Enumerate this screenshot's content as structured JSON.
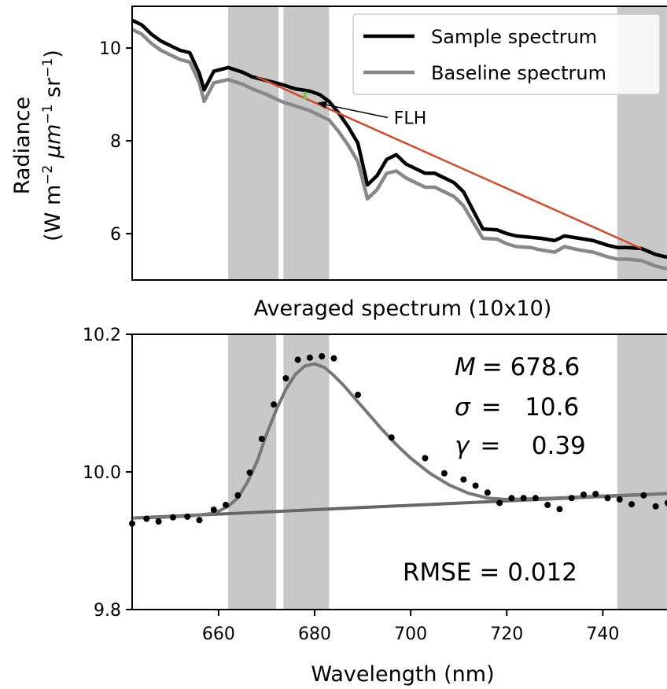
{
  "chart_data": [
    {
      "type": "line",
      "title": "",
      "xlabel": "",
      "ylabel": "Radiance",
      "ylabel_units": "(W m",
      "ylabel_units_parts": [
        "(W m",
        "−2",
        " μm",
        "−1",
        " sr",
        "−1",
        ")"
      ],
      "xlim": [
        642,
        755
      ],
      "ylim": [
        5.0,
        10.9
      ],
      "yticks": [
        6,
        8,
        10
      ],
      "ytick_labels": [
        "6",
        "8",
        "10"
      ],
      "grid": false,
      "legend": "top-right",
      "shaded_bands": [
        [
          662,
          672.5
        ],
        [
          673.5,
          683
        ],
        [
          743,
          755
        ]
      ],
      "series": [
        {
          "name": "Sample spectrum",
          "color": "#000000",
          "x": [
            642,
            644,
            646,
            648,
            650,
            652,
            654,
            656,
            657,
            659,
            662,
            665,
            667,
            670,
            673,
            676,
            679,
            681,
            683,
            685,
            687,
            689,
            691,
            693,
            695,
            697,
            699,
            701,
            703,
            705,
            707,
            709,
            711,
            713,
            715,
            718,
            720,
            722,
            725,
            727,
            730,
            732,
            735,
            738,
            741,
            743,
            745,
            748,
            751,
            753,
            755
          ],
          "values": [
            10.6,
            10.5,
            10.3,
            10.15,
            10.05,
            9.95,
            9.9,
            9.45,
            9.1,
            9.5,
            9.58,
            9.48,
            9.38,
            9.3,
            9.22,
            9.12,
            9.07,
            9.0,
            8.85,
            8.6,
            8.3,
            7.95,
            7.05,
            7.25,
            7.6,
            7.7,
            7.5,
            7.4,
            7.3,
            7.3,
            7.2,
            7.1,
            6.9,
            6.5,
            6.1,
            6.08,
            6.0,
            5.95,
            5.92,
            5.9,
            5.85,
            5.95,
            5.9,
            5.85,
            5.75,
            5.7,
            5.7,
            5.68,
            5.55,
            5.5,
            5.5
          ]
        },
        {
          "name": "Baseline spectrum",
          "color": "#888888",
          "x": [
            642,
            644,
            646,
            648,
            650,
            652,
            654,
            656,
            657,
            659,
            662,
            665,
            667,
            670,
            673,
            676,
            679,
            681,
            683,
            685,
            687,
            689,
            691,
            693,
            695,
            697,
            699,
            701,
            703,
            705,
            707,
            709,
            711,
            713,
            715,
            718,
            720,
            722,
            725,
            727,
            730,
            732,
            735,
            738,
            741,
            743,
            745,
            748,
            751,
            753,
            755
          ],
          "values": [
            10.4,
            10.3,
            10.1,
            9.95,
            9.85,
            9.75,
            9.7,
            9.25,
            8.85,
            9.25,
            9.32,
            9.22,
            9.12,
            9.0,
            8.85,
            8.75,
            8.65,
            8.55,
            8.45,
            8.2,
            7.9,
            7.55,
            6.75,
            6.95,
            7.3,
            7.35,
            7.2,
            7.1,
            7.0,
            7.0,
            6.9,
            6.8,
            6.6,
            6.25,
            5.9,
            5.88,
            5.78,
            5.72,
            5.7,
            5.65,
            5.6,
            5.72,
            5.65,
            5.6,
            5.5,
            5.45,
            5.45,
            5.42,
            5.3,
            5.25,
            5.25
          ]
        }
      ],
      "flh_line": {
        "color": "#d24a2a",
        "x": [
          668,
          748
        ],
        "y": [
          9.38,
          5.68
        ]
      },
      "flh_marker": {
        "color": "#7fc04a",
        "x": 678,
        "y": [
          9.06,
          8.9
        ]
      },
      "annotation": {
        "text": "FLH",
        "point_x": 680.2,
        "point_y": 8.82,
        "text_x": 696.5,
        "text_y": 8.4
      }
    },
    {
      "type": "scatter",
      "title": "Averaged spectrum (10x10)",
      "xlabel": "Wavelength (nm)",
      "ylabel": "",
      "xlim": [
        642,
        755
      ],
      "ylim": [
        9.8,
        10.2
      ],
      "xticks": [
        660,
        680,
        700,
        720,
        740
      ],
      "xtick_labels": [
        "660",
        "680",
        "700",
        "720",
        "740"
      ],
      "yticks": [
        9.8,
        10.0,
        10.2
      ],
      "ytick_labels": [
        "9.8",
        "10.0",
        "10.2"
      ],
      "grid": false,
      "shaded_bands": [
        [
          662,
          672
        ],
        [
          673.5,
          683
        ],
        [
          743,
          755
        ]
      ],
      "points": {
        "color": "#000000",
        "x": [
          642,
          645,
          647.5,
          650.5,
          653.5,
          656,
          659,
          661.5,
          664,
          666.5,
          669,
          671.5,
          674,
          676.5,
          679,
          681.5,
          684,
          689,
          696,
          703,
          707,
          711,
          713.5,
          716,
          718.5,
          721,
          723.5,
          726,
          728.5,
          731,
          733.5,
          736,
          738.5,
          741,
          743.5,
          746,
          748.5,
          751,
          753.5
        ],
        "values": [
          9.925,
          9.932,
          9.928,
          9.934,
          9.935,
          9.93,
          9.945,
          9.952,
          9.966,
          9.999,
          10.048,
          10.098,
          10.136,
          10.163,
          10.166,
          10.168,
          10.165,
          10.112,
          10.05,
          10.02,
          9.998,
          9.989,
          9.98,
          9.97,
          9.955,
          9.962,
          9.962,
          9.962,
          9.952,
          9.946,
          9.962,
          9.967,
          9.968,
          9.962,
          9.96,
          9.953,
          9.966,
          9.95,
          9.955
        ]
      },
      "fit_curve": {
        "color": "#777777",
        "x": [
          642,
          648,
          654,
          658,
          660,
          662,
          664,
          666,
          668,
          670,
          672,
          674,
          676,
          678,
          680,
          682,
          684,
          686,
          688,
          690,
          692,
          694,
          696,
          698,
          700,
          704,
          708,
          712,
          716,
          720,
          730,
          740,
          755
        ],
        "values": [
          9.933,
          9.934,
          9.936,
          9.939,
          9.943,
          9.95,
          9.962,
          9.985,
          10.015,
          10.055,
          10.09,
          10.12,
          10.142,
          10.154,
          10.157,
          10.152,
          10.14,
          10.126,
          10.11,
          10.094,
          10.078,
          10.062,
          10.047,
          10.033,
          10.02,
          9.998,
          9.981,
          9.969,
          9.962,
          9.96,
          9.962,
          9.965,
          9.969
        ]
      },
      "baseline_line": {
        "color": "#666666",
        "x": [
          642,
          755
        ],
        "y": [
          9.933,
          9.969
        ]
      },
      "stats": {
        "M_symbol": "M",
        "M_value": "= 678.6",
        "sigma_symbol": "σ",
        "sigma_value": "=   10.6",
        "gamma_symbol": "γ",
        "gamma_value": "=    0.39",
        "rmse": "RMSE = 0.012"
      }
    }
  ]
}
